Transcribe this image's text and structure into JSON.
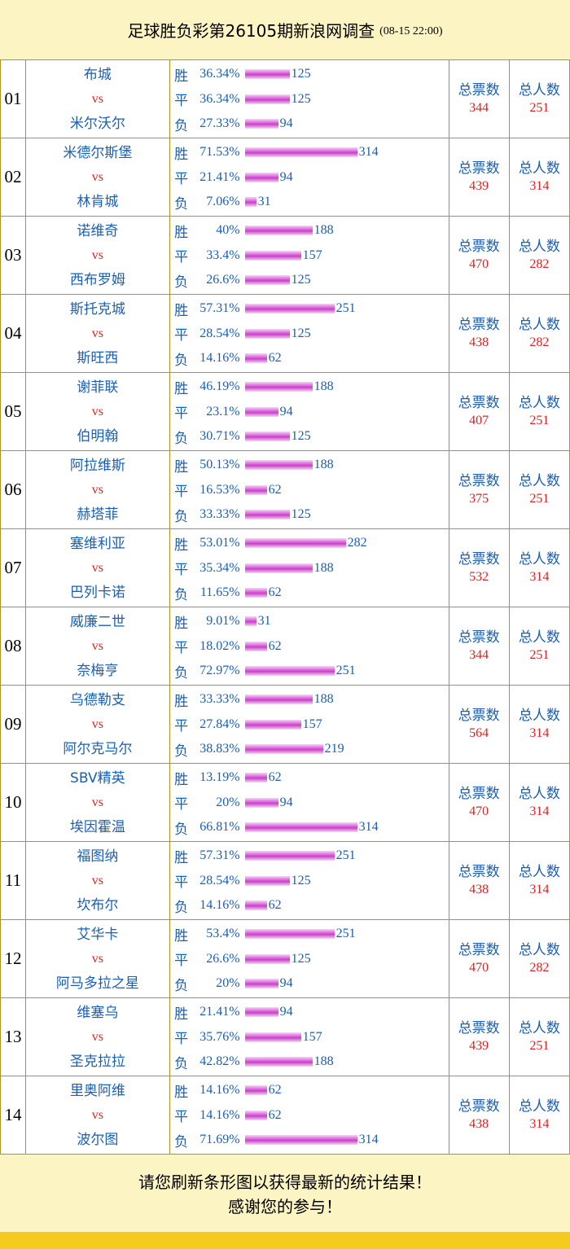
{
  "header": {
    "title": "足球胜负彩第26105期新浪网调查",
    "datetime": "(08-15 22:00)"
  },
  "labels": {
    "win": "胜",
    "draw": "平",
    "lose": "负",
    "vs": "vs",
    "total_votes": "总票数",
    "total_people": "总人数"
  },
  "matches": [
    {
      "num": "01",
      "home": "布城",
      "away": "米尔沃尔",
      "win_pct": "36.34%",
      "win_cnt": "125",
      "draw_pct": "36.34%",
      "draw_cnt": "125",
      "lose_pct": "27.33%",
      "lose_cnt": "94",
      "total_votes": "344",
      "total_people": "251"
    },
    {
      "num": "02",
      "home": "米德尔斯堡",
      "away": "林肯城",
      "win_pct": "71.53%",
      "win_cnt": "314",
      "draw_pct": "21.41%",
      "draw_cnt": "94",
      "lose_pct": "7.06%",
      "lose_cnt": "31",
      "total_votes": "439",
      "total_people": "314"
    },
    {
      "num": "03",
      "home": "诺维奇",
      "away": "西布罗姆",
      "win_pct": "40%",
      "win_cnt": "188",
      "draw_pct": "33.4%",
      "draw_cnt": "157",
      "lose_pct": "26.6%",
      "lose_cnt": "125",
      "total_votes": "470",
      "total_people": "282"
    },
    {
      "num": "04",
      "home": "斯托克城",
      "away": "斯旺西",
      "win_pct": "57.31%",
      "win_cnt": "251",
      "draw_pct": "28.54%",
      "draw_cnt": "125",
      "lose_pct": "14.16%",
      "lose_cnt": "62",
      "total_votes": "438",
      "total_people": "282"
    },
    {
      "num": "05",
      "home": "谢菲联",
      "away": "伯明翰",
      "win_pct": "46.19%",
      "win_cnt": "188",
      "draw_pct": "23.1%",
      "draw_cnt": "94",
      "lose_pct": "30.71%",
      "lose_cnt": "125",
      "total_votes": "407",
      "total_people": "251"
    },
    {
      "num": "06",
      "home": "阿拉维斯",
      "away": "赫塔菲",
      "win_pct": "50.13%",
      "win_cnt": "188",
      "draw_pct": "16.53%",
      "draw_cnt": "62",
      "lose_pct": "33.33%",
      "lose_cnt": "125",
      "total_votes": "375",
      "total_people": "251"
    },
    {
      "num": "07",
      "home": "塞维利亚",
      "away": "巴列卡诺",
      "win_pct": "53.01%",
      "win_cnt": "282",
      "draw_pct": "35.34%",
      "draw_cnt": "188",
      "lose_pct": "11.65%",
      "lose_cnt": "62",
      "total_votes": "532",
      "total_people": "314"
    },
    {
      "num": "08",
      "home": "威廉二世",
      "away": "奈梅亨",
      "win_pct": "9.01%",
      "win_cnt": "31",
      "draw_pct": "18.02%",
      "draw_cnt": "62",
      "lose_pct": "72.97%",
      "lose_cnt": "251",
      "total_votes": "344",
      "total_people": "251"
    },
    {
      "num": "09",
      "home": "乌德勒支",
      "away": "阿尔克马尔",
      "win_pct": "33.33%",
      "win_cnt": "188",
      "draw_pct": "27.84%",
      "draw_cnt": "157",
      "lose_pct": "38.83%",
      "lose_cnt": "219",
      "total_votes": "564",
      "total_people": "314"
    },
    {
      "num": "10",
      "home": "SBV精英",
      "away": "埃因霍温",
      "win_pct": "13.19%",
      "win_cnt": "62",
      "draw_pct": "20%",
      "draw_cnt": "94",
      "lose_pct": "66.81%",
      "lose_cnt": "314",
      "total_votes": "470",
      "total_people": "314"
    },
    {
      "num": "11",
      "home": "福图纳",
      "away": "坎布尔",
      "win_pct": "57.31%",
      "win_cnt": "251",
      "draw_pct": "28.54%",
      "draw_cnt": "125",
      "lose_pct": "14.16%",
      "lose_cnt": "62",
      "total_votes": "438",
      "total_people": "314"
    },
    {
      "num": "12",
      "home": "艾华卡",
      "away": "阿马多拉之星",
      "win_pct": "53.4%",
      "win_cnt": "251",
      "draw_pct": "26.6%",
      "draw_cnt": "125",
      "lose_pct": "20%",
      "lose_cnt": "94",
      "total_votes": "470",
      "total_people": "282"
    },
    {
      "num": "13",
      "home": "维塞乌",
      "away": "圣克拉拉",
      "win_pct": "21.41%",
      "win_cnt": "94",
      "draw_pct": "35.76%",
      "draw_cnt": "157",
      "lose_pct": "42.82%",
      "lose_cnt": "188",
      "total_votes": "439",
      "total_people": "251"
    },
    {
      "num": "14",
      "home": "里奥阿维",
      "away": "波尔图",
      "win_pct": "14.16%",
      "win_cnt": "62",
      "draw_pct": "14.16%",
      "draw_cnt": "62",
      "lose_pct": "71.69%",
      "lose_cnt": "314",
      "total_votes": "438",
      "total_people": "314"
    }
  ],
  "footer": {
    "line1": "请您刷新条形图以获得最新的统计结果！",
    "line2": "感谢您的参与！"
  },
  "colors": {
    "background": "#fdf4c4",
    "border": "#b8901c",
    "blue_text": "#1a5fb4",
    "red_text": "#e02020",
    "bar": "#d957d9",
    "bottom_strip": "#f5cc1e"
  }
}
